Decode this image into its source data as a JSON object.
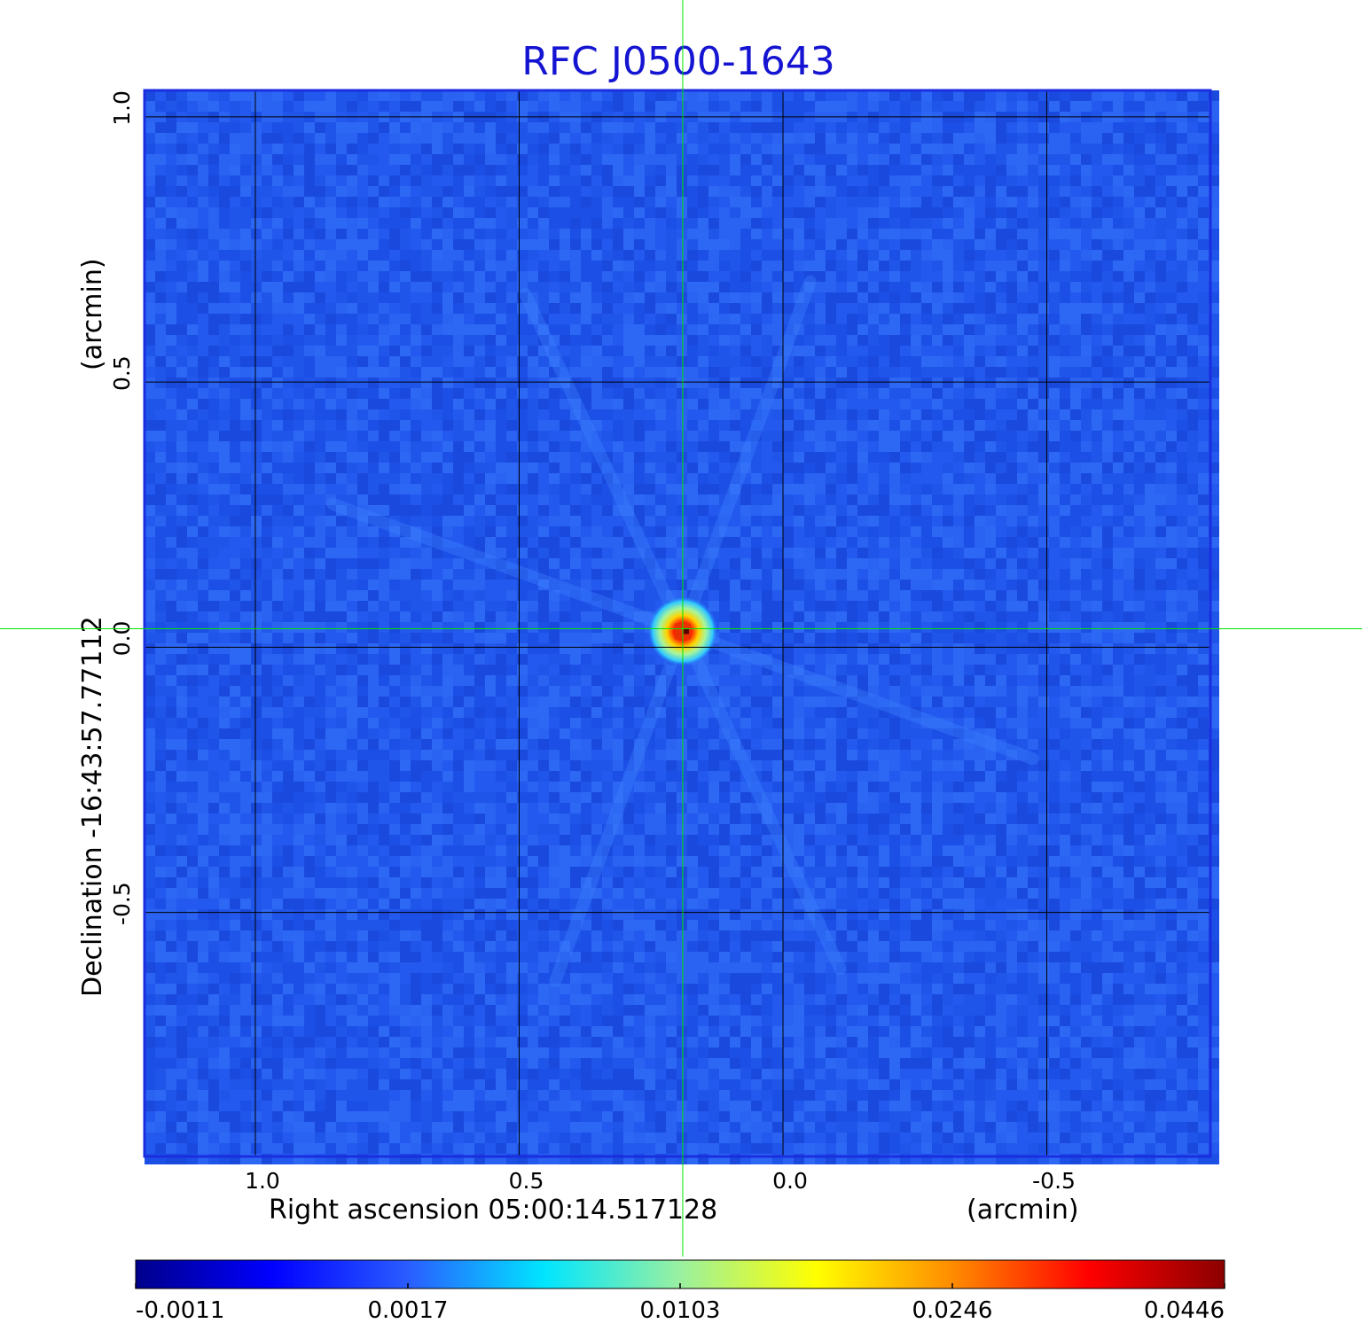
{
  "chart_data": {
    "type": "heatmap",
    "title": "RFC J0500-1643",
    "xlabel": "Right ascension  05:00:14.517128",
    "xunit": "(arcmin)",
    "ylabel": "Declination  -16:43:57.77112",
    "yunit": "(arcmin)",
    "x_range": [
      1.21,
      -0.81
    ],
    "y_range": [
      -0.96,
      1.05
    ],
    "x_ticks": [
      {
        "value": 1.0,
        "label": "1.0"
      },
      {
        "value": 0.5,
        "label": "0.5"
      },
      {
        "value": 0.0,
        "label": "0.0"
      },
      {
        "value": -0.5,
        "label": "-0.5"
      }
    ],
    "y_ticks": [
      {
        "value": 1.0,
        "label": "1.0"
      },
      {
        "value": 0.5,
        "label": "0.5"
      },
      {
        "value": 0.0,
        "label": "0.0"
      },
      {
        "value": -0.5,
        "label": "-0.5"
      }
    ],
    "grid": true,
    "crosshair": {
      "x": 0.19,
      "y": 0.035
    },
    "source_peak": {
      "x": 0.19,
      "y": 0.03,
      "value": 0.0446
    },
    "colorbar": {
      "position": "bottom",
      "tick_labels": [
        "-0.0011",
        "0.0017",
        "0.0103",
        "0.0246",
        "0.0446"
      ],
      "colormap": [
        "#00008b",
        "#0000ff",
        "#2a5cff",
        "#00e5ff",
        "#9af0a0",
        "#ffff00",
        "#ff8c00",
        "#ff0000",
        "#8b0000"
      ]
    },
    "colors": {
      "title": "#1414d2",
      "background_map": "#2158ee",
      "frame": "#1a2ee0",
      "grid": "#000000",
      "crosshair": "#00e600"
    }
  }
}
